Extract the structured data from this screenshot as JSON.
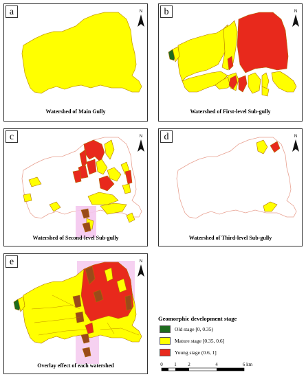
{
  "panels": [
    {
      "letter": "a",
      "caption": "Watershed of Main Gully"
    },
    {
      "letter": "b",
      "caption": "Watershed of First-level Sub-gully"
    },
    {
      "letter": "c",
      "caption": "Watershed of Second-level Sub-gully"
    },
    {
      "letter": "d",
      "caption": "Watershed of Third-level Sub-gully"
    },
    {
      "letter": "e",
      "caption": "Overlay effect of each watershed"
    }
  ],
  "north_label": "N",
  "legend": {
    "title": "Geomorphic development stage",
    "items": [
      {
        "label": "Old stage [0, 0.35)",
        "color": "#1e6b1e"
      },
      {
        "label": "Mature stage [0.35, 0.6]",
        "color": "#ffff00"
      },
      {
        "label": "Young stage (0.6, 1]",
        "color": "#e8291c"
      }
    ]
  },
  "scale_bar": {
    "ticks": [
      "0",
      "1",
      "2",
      "4",
      "6 km"
    ]
  },
  "colors": {
    "mature": "#ffff00",
    "young": "#e8291c",
    "old": "#1e6b1e",
    "brown": "#9a4a1a",
    "outline": "#e8a090",
    "pink": "#f4c6ee"
  }
}
